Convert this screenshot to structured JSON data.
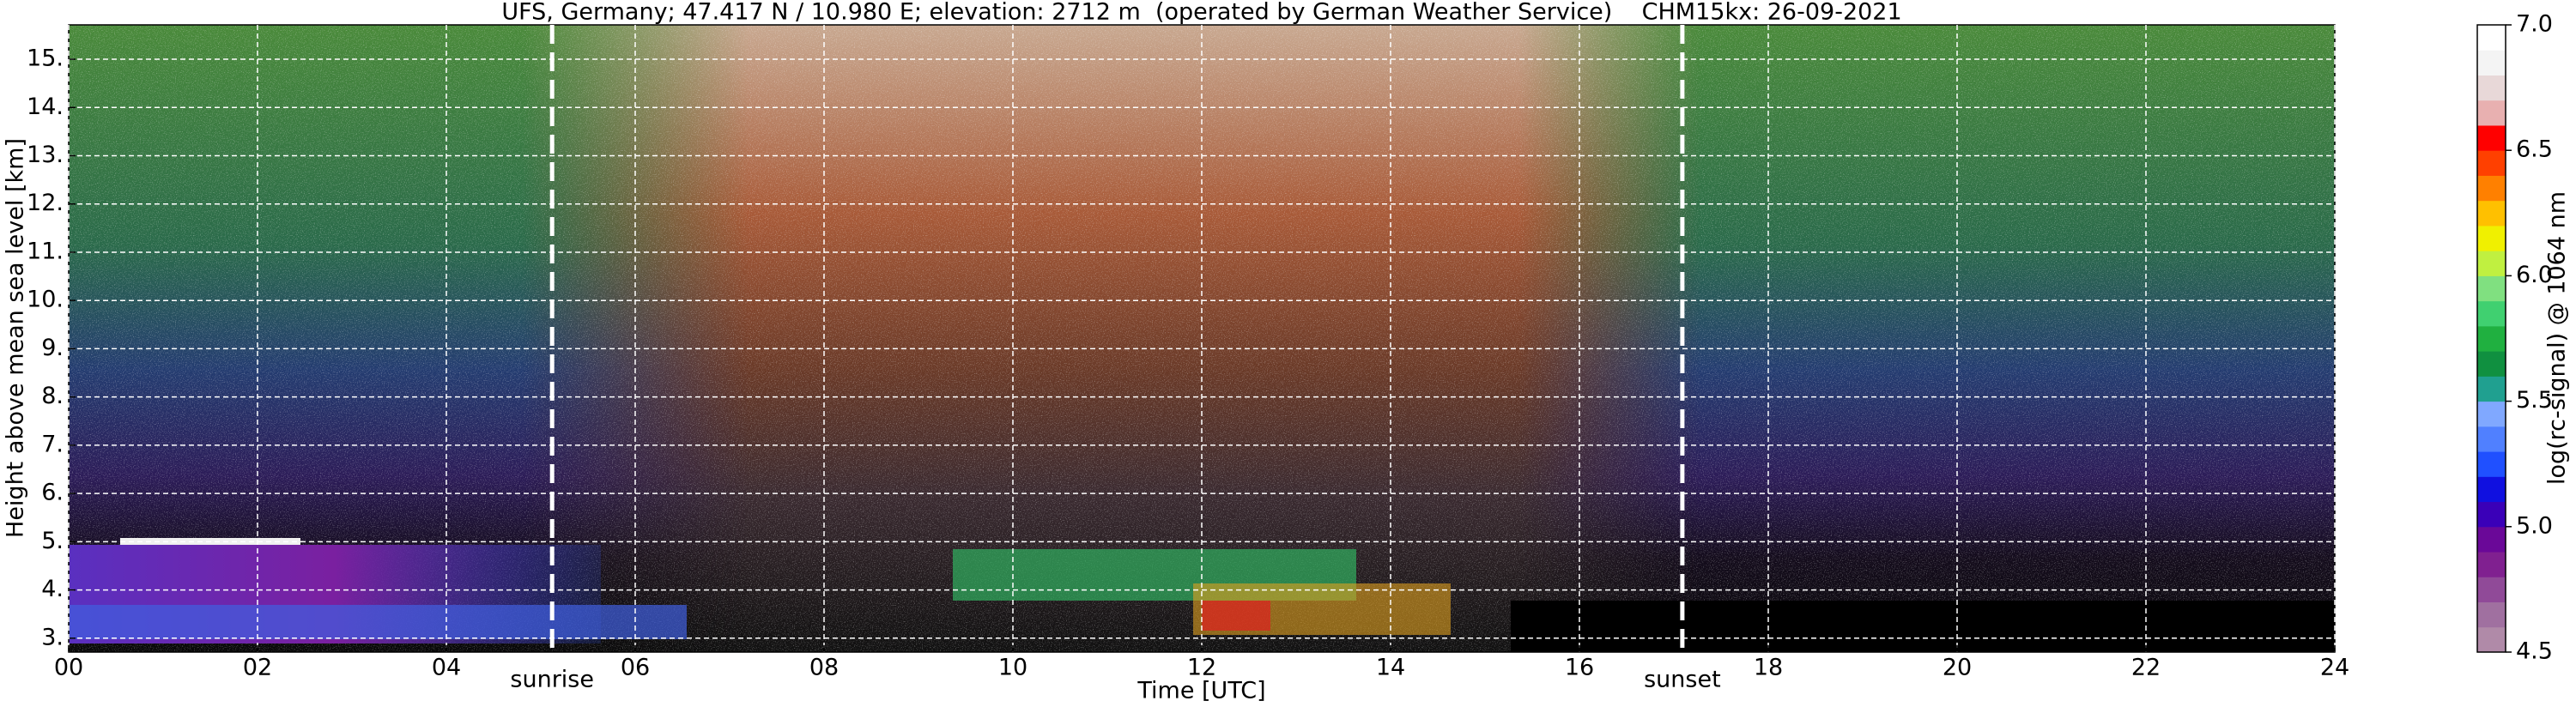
{
  "chart_data": {
    "type": "heatmap",
    "title": "UFS, Germany; 47.417 N / 10.980 E; elevation: 2712 m  (operated by German Weather Service)    CHM15kx: 26-09-2021",
    "x_label": "Time [UTC]",
    "y_label": "Height above mean sea level [km]",
    "xlim": [
      0,
      24
    ],
    "xticks": [
      {
        "value": 0,
        "label": "00"
      },
      {
        "value": 2,
        "label": "02"
      },
      {
        "value": 4,
        "label": "04"
      },
      {
        "value": 6,
        "label": "06"
      },
      {
        "value": 8,
        "label": "08"
      },
      {
        "value": 10,
        "label": "10"
      },
      {
        "value": 12,
        "label": "12"
      },
      {
        "value": 14,
        "label": "14"
      },
      {
        "value": 16,
        "label": "16"
      },
      {
        "value": 18,
        "label": "18"
      },
      {
        "value": 20,
        "label": "20"
      },
      {
        "value": 22,
        "label": "22"
      },
      {
        "value": 24,
        "label": "24"
      }
    ],
    "ylim": [
      2.712,
      15.712
    ],
    "yticks": [
      {
        "value": 3,
        "label": "3."
      },
      {
        "value": 4,
        "label": "4."
      },
      {
        "value": 5,
        "label": "5."
      },
      {
        "value": 6,
        "label": "6."
      },
      {
        "value": 7,
        "label": "7."
      },
      {
        "value": 8,
        "label": "8."
      },
      {
        "value": 9,
        "label": "9."
      },
      {
        "value": 10,
        "label": "10."
      },
      {
        "value": 11,
        "label": "11."
      },
      {
        "value": 12,
        "label": "12."
      },
      {
        "value": 13,
        "label": "13."
      },
      {
        "value": 14,
        "label": "14."
      },
      {
        "value": 15,
        "label": "15."
      }
    ],
    "grid": true,
    "annotations": [
      {
        "text": "sunrise",
        "x": 5.12
      },
      {
        "text": "sunset",
        "x": 17.09
      }
    ],
    "colorbar": {
      "label": "log(rc-signal) @ 1064 nm",
      "clim": [
        4.5,
        7.0
      ],
      "ticks": [
        4.5,
        {
          "value": 5.0,
          "label": "5.0"
        },
        5.5,
        {
          "value": 6.0,
          "label": "6.0"
        },
        6.5,
        {
          "value": 7.0,
          "label": "7.0"
        }
      ],
      "colors": [
        "#b08aa8",
        "#a070a0",
        "#904a98",
        "#802090",
        "#6a0898",
        "#3a00b8",
        "#1010e0",
        "#2050ff",
        "#5080ff",
        "#80a8ff",
        "#20a090",
        "#109040",
        "#20b040",
        "#40d070",
        "#80e080",
        "#c0f040",
        "#f0f000",
        "#ffc000",
        "#ff8000",
        "#ff4000",
        "#ff0000",
        "#e8b0b0",
        "#e8d8d8",
        "#f4f4f4",
        "#ffffff"
      ]
    }
  }
}
